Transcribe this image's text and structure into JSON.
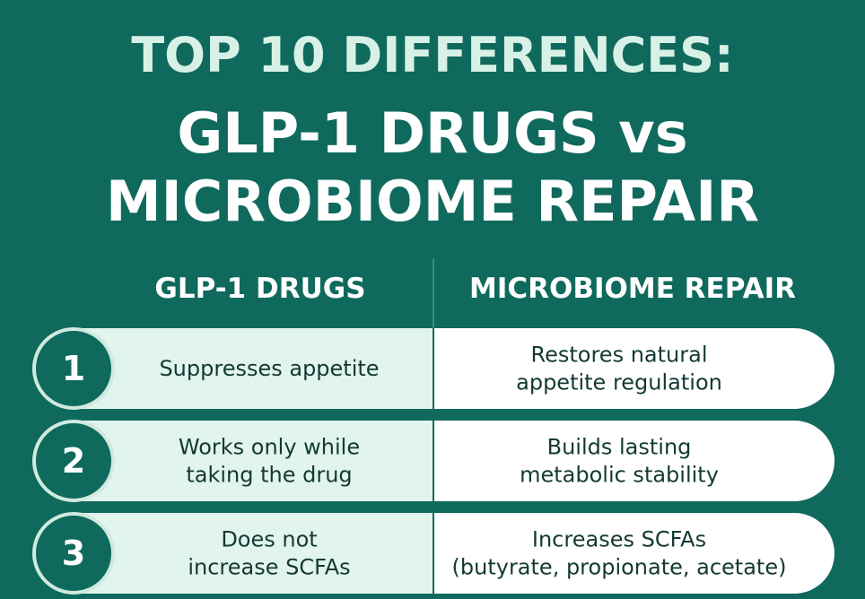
{
  "header": {
    "title_lines": [
      "TOP 10 DIFFERENCES:",
      "GLP-1 DRUGS vs",
      "MICROBIOME REPAIR"
    ]
  },
  "columns": [
    "GLP-1 DRUGS",
    "MICROBIOME REPAIR"
  ],
  "rows": [
    {
      "number": 1,
      "left": [
        "Suppresses appetite"
      ],
      "right": [
        "Restores natural",
        "appetite regulation"
      ]
    },
    {
      "number": 2,
      "left": [
        "Works only while",
        "taking the drug"
      ],
      "right": [
        "Builds lasting",
        "metabolic stability"
      ]
    },
    {
      "number": 3,
      "left": [
        "Does not",
        "increase SCFAs"
      ],
      "right": [
        "Increases SCFAs",
        "(butyrate, propionate, acetate)"
      ]
    }
  ]
}
